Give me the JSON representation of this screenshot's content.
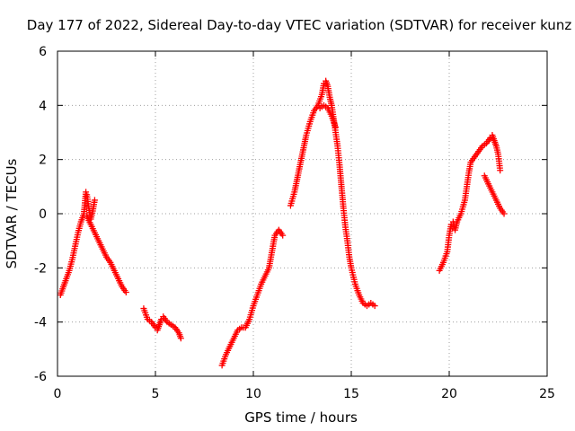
{
  "chart_data": {
    "type": "scatter",
    "title": "Day 177 of 2022, Sidereal Day-to-day VTEC variation (SDTVAR) for receiver kunz",
    "xlabel": "GPS time / hours",
    "ylabel": "SDTVAR / TECUs",
    "xlim": [
      0,
      25
    ],
    "ylim": [
      -6,
      6
    ],
    "xticks": [
      0,
      5,
      10,
      15,
      20,
      25
    ],
    "yticks": [
      -6,
      -4,
      -2,
      0,
      2,
      4,
      6
    ],
    "grid": true,
    "marker": "plus",
    "color": "#ff0000",
    "segments": [
      {
        "x": [
          0.15,
          0.3,
          0.45,
          0.6,
          0.75,
          0.9,
          1.05,
          1.2,
          1.35,
          1.45
        ],
        "y": [
          -3.0,
          -2.7,
          -2.4,
          -2.1,
          -1.7,
          -1.2,
          -0.7,
          -0.3,
          0.0,
          0.8
        ]
      },
      {
        "x": [
          1.5,
          1.6,
          1.7,
          1.8,
          1.9
        ],
        "y": [
          0.7,
          0.2,
          -0.2,
          0.1,
          0.5
        ]
      },
      {
        "x": [
          1.5,
          1.7,
          1.9,
          2.1,
          2.3,
          2.5,
          2.7,
          2.9,
          3.1,
          3.3,
          3.5
        ],
        "y": [
          -0.1,
          -0.4,
          -0.7,
          -1.0,
          -1.3,
          -1.6,
          -1.8,
          -2.1,
          -2.4,
          -2.7,
          -2.9
        ]
      },
      {
        "x": [
          4.4,
          4.6,
          4.8,
          5.0,
          5.1,
          5.2,
          5.3,
          5.4,
          5.6,
          5.8,
          6.0,
          6.2,
          6.3
        ],
        "y": [
          -3.5,
          -3.9,
          -4.0,
          -4.2,
          -4.3,
          -4.1,
          -3.9,
          -3.8,
          -4.0,
          -4.1,
          -4.2,
          -4.4,
          -4.6
        ]
      },
      {
        "x": [
          8.4,
          8.6,
          8.8,
          9.0,
          9.2,
          9.4,
          9.6,
          9.8,
          10.0,
          10.2,
          10.4,
          10.6,
          10.8,
          10.9,
          11.0,
          11.1,
          11.3,
          11.5
        ],
        "y": [
          -5.6,
          -5.2,
          -4.9,
          -4.6,
          -4.3,
          -4.2,
          -4.2,
          -3.9,
          -3.4,
          -3.0,
          -2.6,
          -2.3,
          -2.0,
          -1.6,
          -1.2,
          -0.8,
          -0.6,
          -0.8
        ]
      },
      {
        "x": [
          11.9,
          12.1,
          12.3,
          12.5,
          12.7,
          12.9,
          13.1,
          13.3,
          13.5,
          13.6,
          13.7,
          13.8,
          13.9,
          14.0,
          14.1,
          14.2,
          14.3,
          14.4,
          14.5,
          14.6,
          14.7,
          14.8,
          14.9,
          15.0,
          15.2,
          15.4,
          15.6,
          15.8,
          16.0,
          16.2
        ],
        "y": [
          0.3,
          0.8,
          1.5,
          2.2,
          2.9,
          3.4,
          3.8,
          4.0,
          4.4,
          4.8,
          4.9,
          4.7,
          4.3,
          4.0,
          3.5,
          3.0,
          2.5,
          1.8,
          1.0,
          0.2,
          -0.5,
          -1.0,
          -1.6,
          -2.0,
          -2.6,
          -3.0,
          -3.3,
          -3.4,
          -3.3,
          -3.4
        ]
      },
      {
        "x": [
          13.4,
          13.6,
          13.8,
          14.0,
          14.2
        ],
        "y": [
          3.9,
          4.0,
          3.9,
          3.6,
          3.2
        ]
      },
      {
        "x": [
          19.5,
          19.7,
          19.9,
          20.0,
          20.1,
          20.2,
          20.3,
          20.4,
          20.6,
          20.8,
          20.9,
          21.0,
          21.1,
          21.3,
          21.5,
          21.7,
          21.9,
          22.1,
          22.2,
          22.3,
          22.4,
          22.5,
          22.6
        ],
        "y": [
          -2.1,
          -1.8,
          -1.4,
          -0.8,
          -0.4,
          -0.3,
          -0.6,
          -0.3,
          0.0,
          0.5,
          1.0,
          1.5,
          1.9,
          2.1,
          2.3,
          2.5,
          2.6,
          2.8,
          2.9,
          2.7,
          2.5,
          2.2,
          1.6
        ]
      },
      {
        "x": [
          21.8,
          22.0,
          22.2,
          22.4,
          22.6,
          22.8
        ],
        "y": [
          1.4,
          1.1,
          0.8,
          0.5,
          0.2,
          0.0
        ]
      }
    ]
  }
}
